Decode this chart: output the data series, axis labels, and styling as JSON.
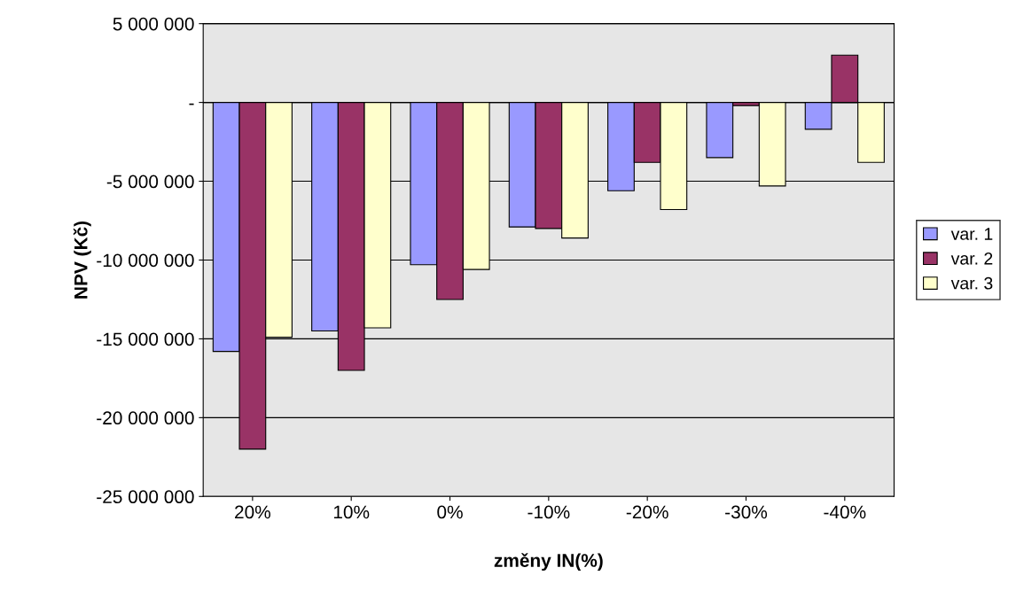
{
  "chart_data": {
    "type": "bar",
    "xlabel": "změny IN(%)",
    "ylabel": "NPV (Kč)",
    "categories": [
      "20%",
      "10%",
      "0%",
      "-10%",
      "-20%",
      "-30%",
      "-40%"
    ],
    "series": [
      {
        "name": "var. 1",
        "color": "#9999ff",
        "values": [
          -15800000,
          -14500000,
          -10300000,
          -7900000,
          -5600000,
          -3500000,
          -1700000
        ]
      },
      {
        "name": "var. 2",
        "color": "#993366",
        "values": [
          -22000000,
          -17000000,
          -12500000,
          -8000000,
          -3800000,
          -200000,
          3000000
        ]
      },
      {
        "name": "var. 3",
        "color": "#ffffcc",
        "values": [
          -14900000,
          -14300000,
          -10600000,
          -8600000,
          -6800000,
          -5300000,
          -3800000
        ]
      }
    ],
    "ylim": [
      -25000000,
      5000000
    ],
    "yticks": [
      {
        "value": 5000000,
        "label": "5 000 000"
      },
      {
        "value": 0,
        "label": "-"
      },
      {
        "value": -5000000,
        "label": "-5 000 000"
      },
      {
        "value": -10000000,
        "label": "-10 000 000"
      },
      {
        "value": -15000000,
        "label": "-15 000 000"
      },
      {
        "value": -20000000,
        "label": "-20 000 000"
      },
      {
        "value": -25000000,
        "label": "-25 000 000"
      }
    ],
    "grid": "y",
    "legend": "right"
  }
}
